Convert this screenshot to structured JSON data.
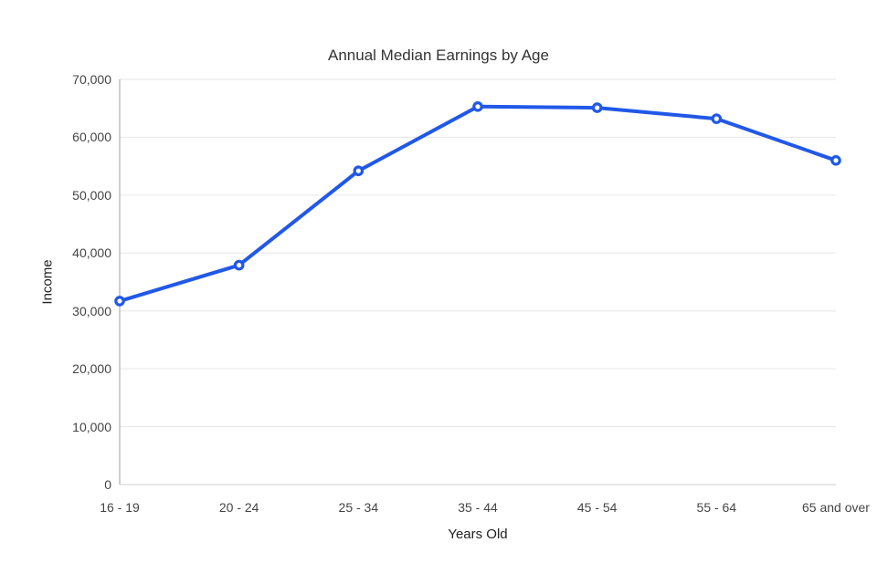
{
  "chart_data": {
    "type": "line",
    "title": "Annual Median Earnings by Age",
    "xlabel": "Years Old",
    "ylabel": "Income",
    "categories": [
      "16 - 19",
      "20 - 24",
      "25 - 34",
      "35 - 44",
      "45 - 54",
      "55 - 64",
      "65 and over"
    ],
    "values": [
      31700,
      37900,
      54200,
      65300,
      65100,
      63200,
      56000
    ],
    "ylim": [
      0,
      70000
    ],
    "y_ticks": [
      {
        "value": 0,
        "label": "0"
      },
      {
        "value": 10000,
        "label": "10,000"
      },
      {
        "value": 20000,
        "label": "20,000"
      },
      {
        "value": 30000,
        "label": "30,000"
      },
      {
        "value": 40000,
        "label": "40,000"
      },
      {
        "value": 50000,
        "label": "50,000"
      },
      {
        "value": 60000,
        "label": "60,000"
      },
      {
        "value": 70000,
        "label": "70,000"
      }
    ],
    "grid": "horizontal-only",
    "legend": "none",
    "colors": {
      "line": "#2158e8",
      "marker_fill": "#ffffff",
      "grid": "#e6e6e6",
      "baseline": "#cccccc",
      "axis_line": "#9e9e9e",
      "tick_text": "#444444",
      "title_text": "#333333",
      "background": "#ffffff"
    }
  }
}
